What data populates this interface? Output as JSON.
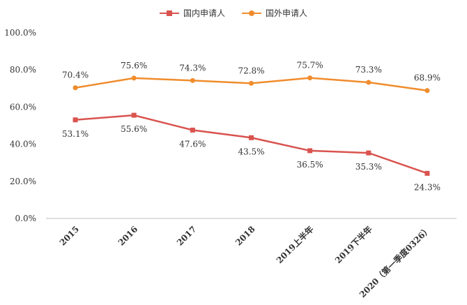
{
  "chart_data": {
    "type": "line",
    "categories": [
      "2015",
      "2016",
      "2017",
      "2018",
      "2019上半年",
      "2019下半年",
      "2020（第一季度0326）"
    ],
    "series": [
      {
        "name": "国内申请人",
        "values": [
          53.1,
          55.6,
          47.6,
          43.5,
          36.5,
          35.3,
          24.3
        ],
        "labels": [
          "53.1%",
          "55.6%",
          "47.6%",
          "43.5%",
          "36.5%",
          "35.3%",
          "24.3%"
        ],
        "color": "#d9534f",
        "marker": "square"
      },
      {
        "name": "国外申请人",
        "values": [
          70.4,
          75.6,
          74.3,
          72.8,
          75.7,
          73.3,
          68.9
        ],
        "labels": [
          "70.4%",
          "75.6%",
          "74.3%",
          "72.8%",
          "75.7%",
          "73.3%",
          "68.9%"
        ],
        "color": "#f08c2c",
        "marker": "circle"
      }
    ],
    "yticks": [
      "0.0%",
      "20.0%",
      "40.0%",
      "60.0%",
      "80.0%",
      "100.0%"
    ],
    "ylim": [
      0,
      100
    ],
    "grid": false,
    "legend": "top-center"
  }
}
